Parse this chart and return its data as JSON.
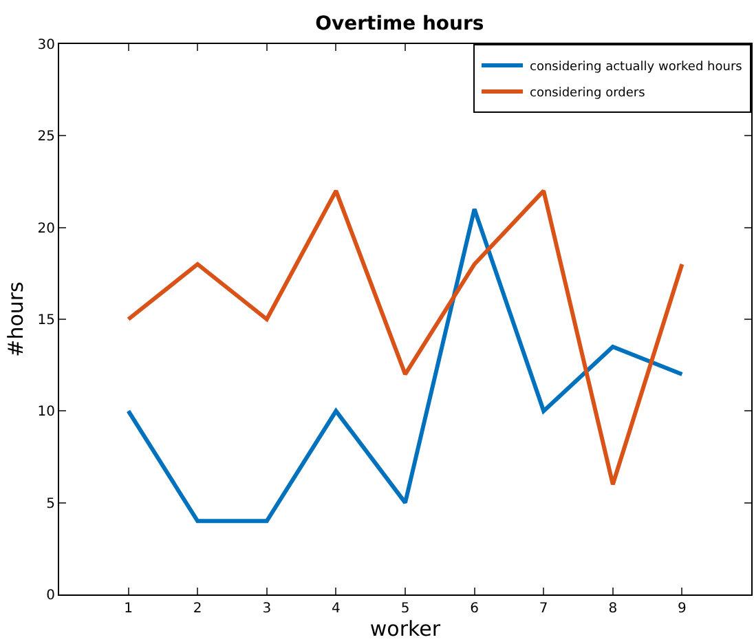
{
  "chart_data": {
    "type": "line",
    "title": "Overtime hours",
    "xlabel": "worker",
    "ylabel": "#hours",
    "x": [
      1,
      2,
      3,
      4,
      5,
      6,
      7,
      8,
      9
    ],
    "series": [
      {
        "name": "considering actually worked hours",
        "color": "#0072bd",
        "values": [
          10,
          4,
          4,
          10,
          5,
          21,
          10,
          13.5,
          12
        ]
      },
      {
        "name": "considering orders",
        "color": "#d95319",
        "values": [
          15,
          18,
          15,
          22,
          12,
          18,
          22,
          6,
          18
        ]
      }
    ],
    "xlim": [
      0,
      10
    ],
    "xticks": [
      1,
      2,
      3,
      4,
      5,
      6,
      7,
      8,
      9
    ],
    "ylim": [
      0,
      30
    ],
    "yticks": [
      0,
      5,
      10,
      15,
      20,
      25,
      30
    ],
    "legend": "top right",
    "marker": "none",
    "line_style": "solid"
  }
}
